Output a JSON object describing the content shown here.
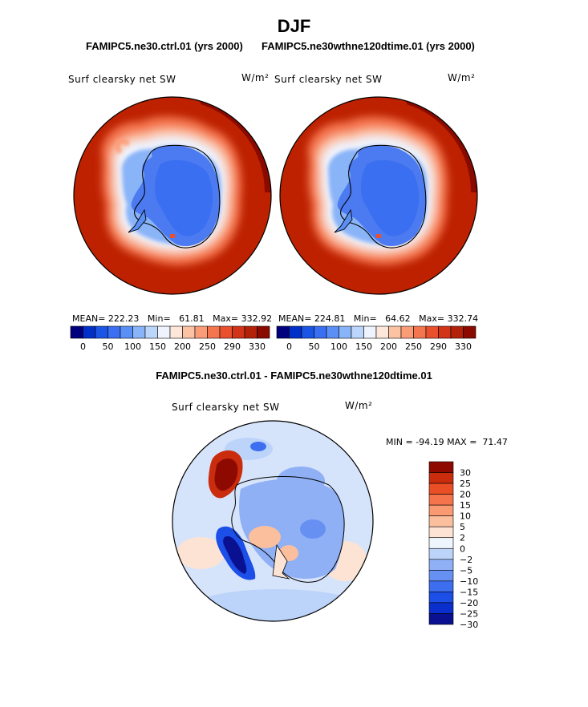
{
  "page": {
    "title": "DJF",
    "case1": "FAMIPC5.ne30.ctrl.01 (yrs 2000)",
    "case2": "FAMIPC5.ne30wthne120dtime.01 (yrs 2000)",
    "diff_title": "FAMIPC5.ne30.ctrl.01 - FAMIPC5.ne30wthne120dtime.01"
  },
  "colors": {
    "seq": [
      "#00007f",
      "#0030c8",
      "#1a55e6",
      "#3a6ff2",
      "#5a8ff5",
      "#8ab4f8",
      "#bcd5fb",
      "#eef3fd",
      "#fde6da",
      "#fcc2a4",
      "#fb9c78",
      "#f4764f",
      "#e8502e",
      "#d23418",
      "#b32208",
      "#8a0a00"
    ],
    "ocean": "#bd2100",
    "ice_inner": "#4c7af0",
    "diff": [
      "#0a1190",
      "#0a2fcc",
      "#1c4ee8",
      "#3d6ef0",
      "#6690f2",
      "#8fb0f5",
      "#bcd3fa",
      "#eff5fd",
      "#fce3d4",
      "#fbbf9e",
      "#f99a72",
      "#f5744b",
      "#ea4e25",
      "#c92d0e",
      "#8e0a00"
    ]
  },
  "chart_data": [
    {
      "type": "heatmap",
      "title": "Surf clearsky net SW",
      "units": "W/m²",
      "case": "FAMIPC5.ne30.ctrl.01 (yrs 2000)",
      "stats": {
        "MEAN": "222.23",
        "Min": "61.81",
        "Max": "332.92"
      },
      "colorbar_ticks": [
        "0",
        "50",
        "100",
        "150",
        "200",
        "250",
        "290",
        "330"
      ]
    },
    {
      "type": "heatmap",
      "title": "Surf clearsky net SW",
      "units": "W/m²",
      "case": "FAMIPC5.ne30wthne120dtime.01 (yrs 2000)",
      "stats": {
        "MEAN": "224.81",
        "Min": "64.62",
        "Max": "332.74"
      },
      "colorbar_ticks": [
        "0",
        "50",
        "100",
        "150",
        "200",
        "250",
        "290",
        "330"
      ]
    },
    {
      "type": "heatmap",
      "title": "Surf clearsky net SW",
      "units": "W/m²",
      "stats": {
        "MIN": "-94.19",
        "MAX": "71.47"
      },
      "colorbar_ticks": [
        "30",
        "25",
        "20",
        "15",
        "10",
        "5",
        "2",
        "0",
        "−2",
        "−5",
        "−10",
        "−15",
        "−20",
        "−25",
        "−30"
      ]
    }
  ],
  "labels": {
    "mean_label": "MEAN=",
    "min_label": "Min=",
    "max_label": "Max=",
    "diff_min_label": "MIN =",
    "diff_max_label": "MAX ="
  }
}
